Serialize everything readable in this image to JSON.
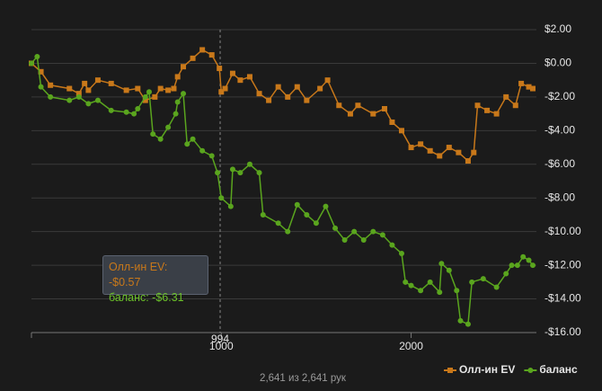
{
  "chart_data": {
    "type": "line",
    "xlim": [
      0,
      2660
    ],
    "xticks": [
      1000,
      2000
    ],
    "ylim": [
      -16,
      2
    ],
    "yticks": [
      {
        "value": 2,
        "label": "$2.00"
      },
      {
        "value": 0,
        "label": "$0.00"
      },
      {
        "value": -2,
        "label": "-$2.00"
      },
      {
        "value": -4,
        "label": "-$4.00"
      },
      {
        "value": -6,
        "label": "-$6.00"
      },
      {
        "value": -8,
        "label": "-$8.00"
      },
      {
        "value": -10,
        "label": "-$10.00"
      },
      {
        "value": -12,
        "label": "-$12.00"
      },
      {
        "value": -14,
        "label": "-$14.00"
      },
      {
        "value": -16,
        "label": "-$16.00"
      }
    ],
    "grid": true,
    "legend": "bottom-right",
    "crosshair": 994,
    "tooltip": [
      "Олл-ин EV: -$0.57",
      "баланс: -$6.31"
    ],
    "footer": "2,641 из 2,641 рук",
    "series": [
      {
        "name": "Олл-ин EV",
        "color": "#c8781a",
        "marker": "square",
        "x": [
          0,
          50,
          100,
          200,
          250,
          280,
          300,
          350,
          420,
          500,
          560,
          600,
          650,
          680,
          720,
          750,
          770,
          800,
          850,
          900,
          950,
          990,
          1000,
          1020,
          1060,
          1100,
          1150,
          1200,
          1250,
          1300,
          1350,
          1400,
          1450,
          1520,
          1560,
          1620,
          1680,
          1720,
          1800,
          1860,
          1900,
          1950,
          2000,
          2050,
          2100,
          2150,
          2200,
          2250,
          2300,
          2330,
          2350,
          2400,
          2450,
          2500,
          2550,
          2580,
          2620,
          2641
        ],
        "values": [
          0,
          -0.5,
          -1.3,
          -1.5,
          -1.8,
          -1.2,
          -1.6,
          -1.0,
          -1.2,
          -1.6,
          -1.5,
          -2.2,
          -2.0,
          -1.5,
          -1.6,
          -1.5,
          -0.8,
          -0.2,
          0.3,
          0.8,
          0.5,
          -0.3,
          -1.7,
          -1.5,
          -0.6,
          -1.0,
          -0.8,
          -1.8,
          -2.2,
          -1.4,
          -2.0,
          -1.4,
          -2.2,
          -1.5,
          -1.0,
          -2.5,
          -3.0,
          -2.5,
          -3.0,
          -2.7,
          -3.5,
          -4.0,
          -5.0,
          -4.8,
          -5.2,
          -5.5,
          -5.0,
          -5.3,
          -5.8,
          -5.3,
          -2.5,
          -2.8,
          -3.0,
          -2.0,
          -2.5,
          -1.2,
          -1.4,
          -1.5
        ]
      },
      {
        "name": "баланс",
        "color": "#5aa51e",
        "marker": "circle",
        "x": [
          0,
          30,
          50,
          100,
          200,
          250,
          300,
          350,
          420,
          500,
          540,
          560,
          600,
          620,
          640,
          680,
          720,
          760,
          770,
          800,
          820,
          850,
          900,
          950,
          980,
          1000,
          1050,
          1060,
          1100,
          1150,
          1200,
          1220,
          1300,
          1350,
          1400,
          1450,
          1500,
          1550,
          1600,
          1650,
          1700,
          1750,
          1800,
          1850,
          1900,
          1950,
          1970,
          2000,
          2050,
          2100,
          2150,
          2160,
          2200,
          2240,
          2260,
          2300,
          2320,
          2380,
          2450,
          2500,
          2530,
          2560,
          2590,
          2620,
          2641
        ],
        "values": [
          0,
          0.4,
          -1.4,
          -2.0,
          -2.2,
          -2.0,
          -2.4,
          -2.2,
          -2.8,
          -2.9,
          -3.0,
          -2.7,
          -2.0,
          -1.7,
          -4.2,
          -4.5,
          -3.8,
          -3.0,
          -2.3,
          -1.8,
          -4.8,
          -4.5,
          -5.2,
          -5.5,
          -6.5,
          -8.0,
          -8.5,
          -6.3,
          -6.5,
          -6.0,
          -6.5,
          -9.0,
          -9.5,
          -10.0,
          -8.4,
          -9.0,
          -9.5,
          -8.5,
          -9.8,
          -10.5,
          -10.0,
          -10.5,
          -10.0,
          -10.2,
          -10.8,
          -11.3,
          -13.0,
          -13.2,
          -13.5,
          -13.0,
          -13.6,
          -11.9,
          -12.3,
          -13.5,
          -15.3,
          -15.5,
          -13.0,
          -12.8,
          -13.3,
          -12.5,
          -12.0,
          -12.0,
          -11.5,
          -11.7,
          -12.0
        ]
      }
    ]
  }
}
